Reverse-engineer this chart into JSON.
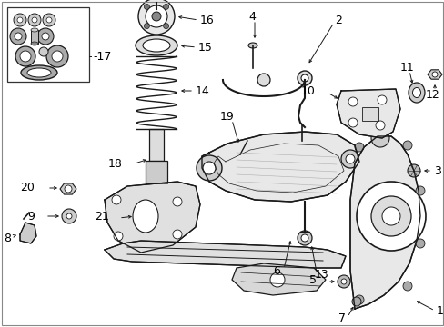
{
  "bg": "#ffffff",
  "lc": "#1a1a1a",
  "figsize": [
    4.89,
    3.6
  ],
  "dpi": 100,
  "fs_label": 9,
  "fs_small": 7.5
}
